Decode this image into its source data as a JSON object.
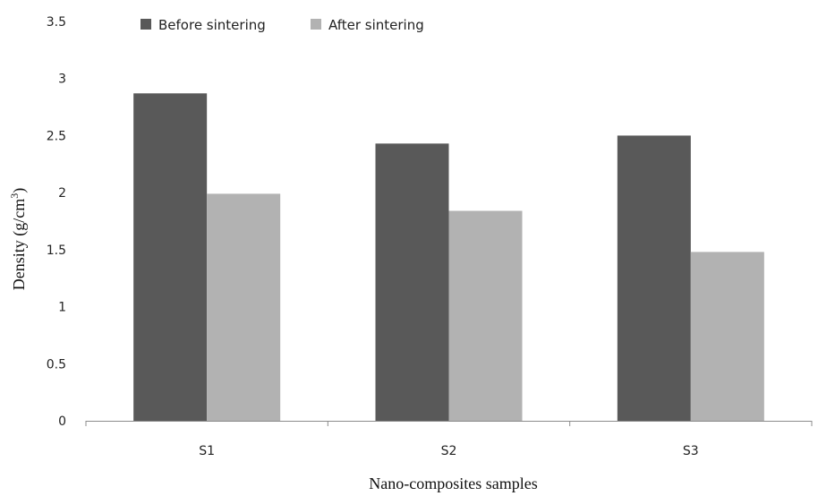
{
  "chart_data": {
    "type": "bar",
    "title": "",
    "xlabel": "Nano-composites  samples",
    "ylabel": "Density  (g/cm",
    "ylabel_superscript": "3",
    "ylabel_close": ")",
    "categories": [
      "S1",
      "S2",
      "S3"
    ],
    "series": [
      {
        "name": "Before sintering",
        "values": [
          2.87,
          2.43,
          2.5
        ],
        "color": "#595959"
      },
      {
        "name": "After sintering",
        "values": [
          1.99,
          1.84,
          1.48
        ],
        "color": "#b2b2b2"
      }
    ],
    "ylim": [
      0,
      3.5
    ],
    "yticks": [
      "0",
      "0.5",
      "1",
      "1.5",
      "2",
      "2.5",
      "3",
      "3.5"
    ],
    "grid": false,
    "legend_position": "top-left"
  }
}
